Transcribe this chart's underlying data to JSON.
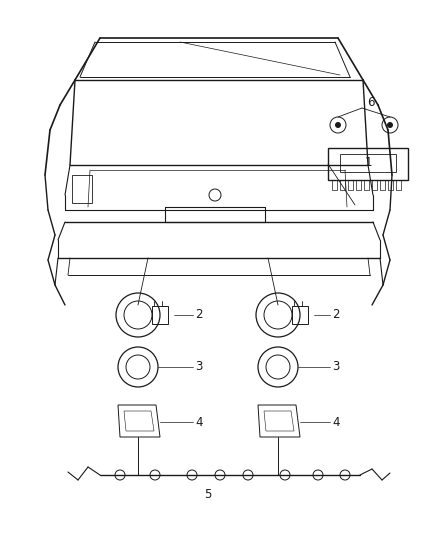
{
  "background_color": "#ffffff",
  "line_color": "#1a1a1a",
  "fig_width": 4.38,
  "fig_height": 5.33,
  "dpi": 100
}
